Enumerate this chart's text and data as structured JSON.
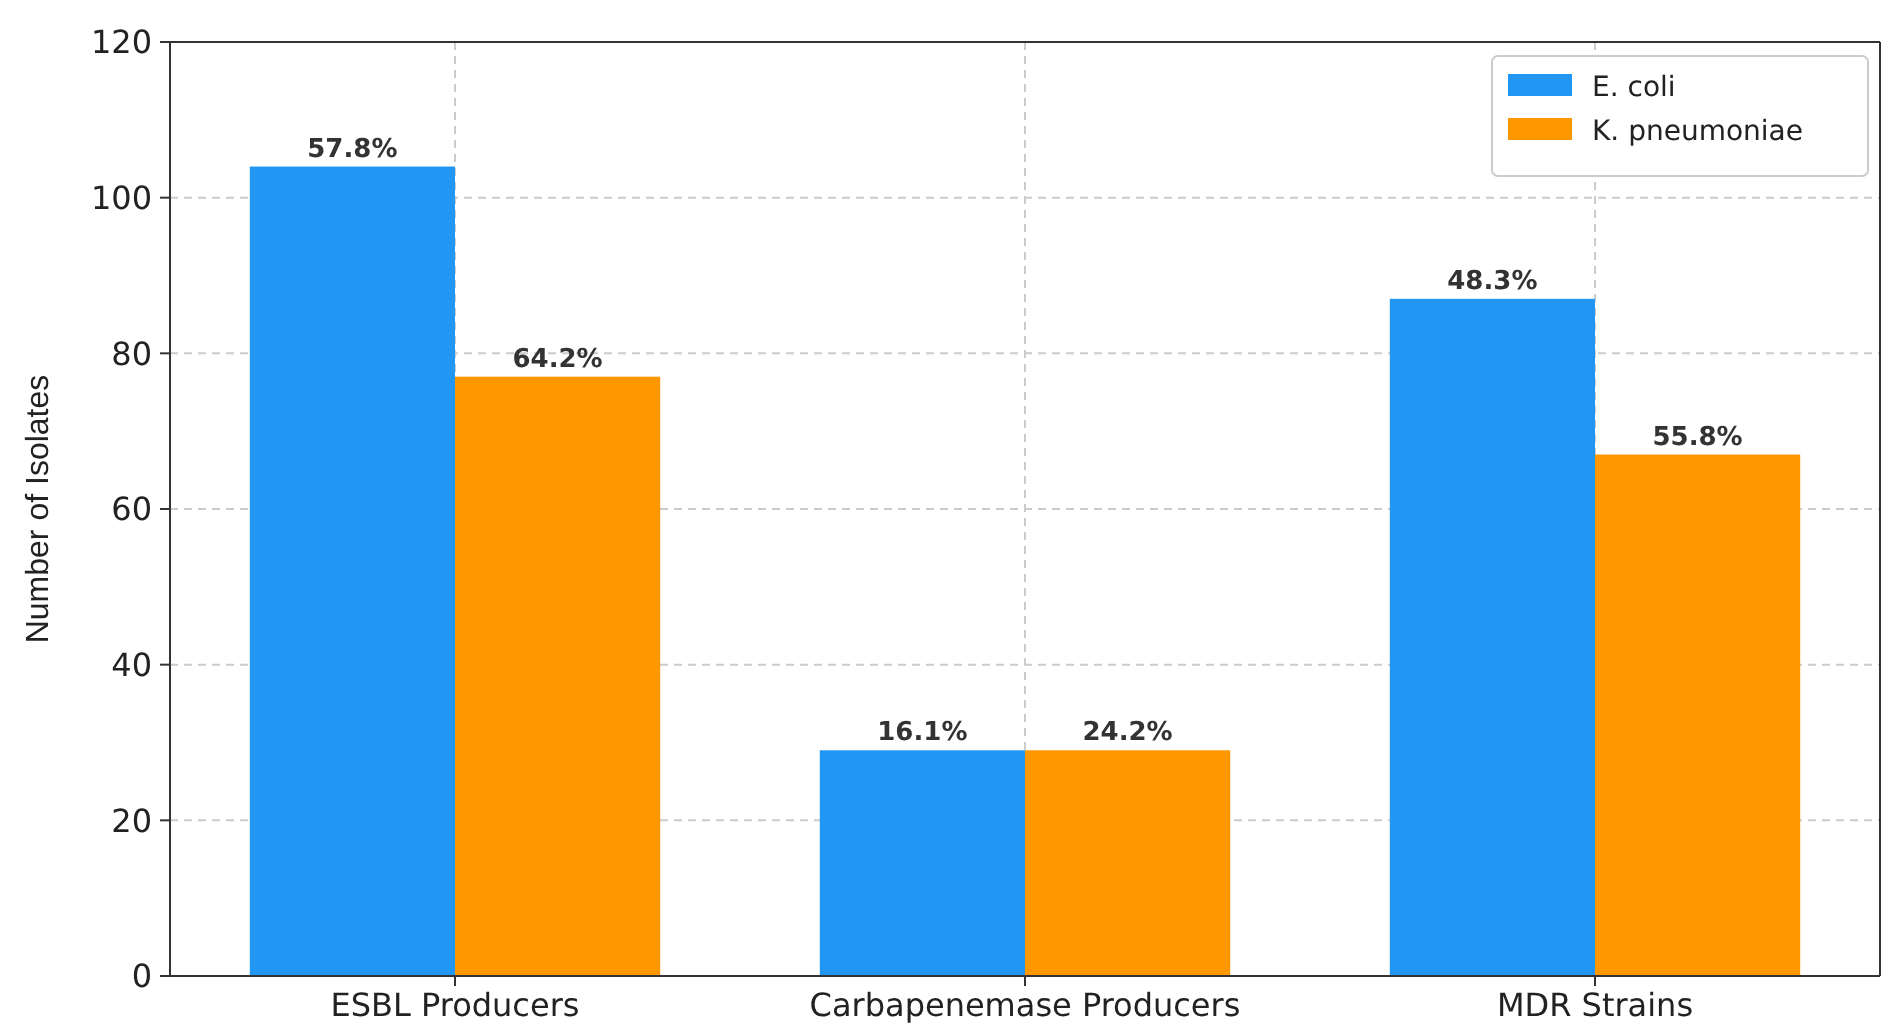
{
  "chart_data": {
    "type": "bar",
    "ylabel": "Number of Isolates",
    "categories": [
      "ESBL Producers",
      "Carbapenemase Producers",
      "MDR Strains"
    ],
    "series": [
      {
        "name": "E. coli",
        "color": "#2196f3",
        "values": [
          104,
          29,
          87
        ]
      },
      {
        "name": "K. pneumoniae",
        "color": "#ff9800",
        "values": [
          77,
          29,
          67
        ]
      }
    ],
    "annotations": [
      {
        "text": "57.8%",
        "x": "ESBL Producers",
        "y": 104
      },
      {
        "text": "16.1%",
        "x": "Carbapenemase Producers",
        "y": 29
      },
      {
        "text": "48.3%",
        "x": "MDR Strains",
        "y": 87
      },
      {
        "text": "64.2%",
        "x": "ESBL Producers",
        "y": 77
      },
      {
        "text": "24.2%",
        "x": "Carbapenemase Producers",
        "y": 29
      },
      {
        "text": "55.8%",
        "x": "MDR Strains",
        "y": 67
      }
    ],
    "ylim": [
      0,
      120
    ],
    "yticks": [
      0,
      20,
      40,
      60,
      80,
      100,
      120
    ],
    "grid": true,
    "legend": "top right"
  }
}
